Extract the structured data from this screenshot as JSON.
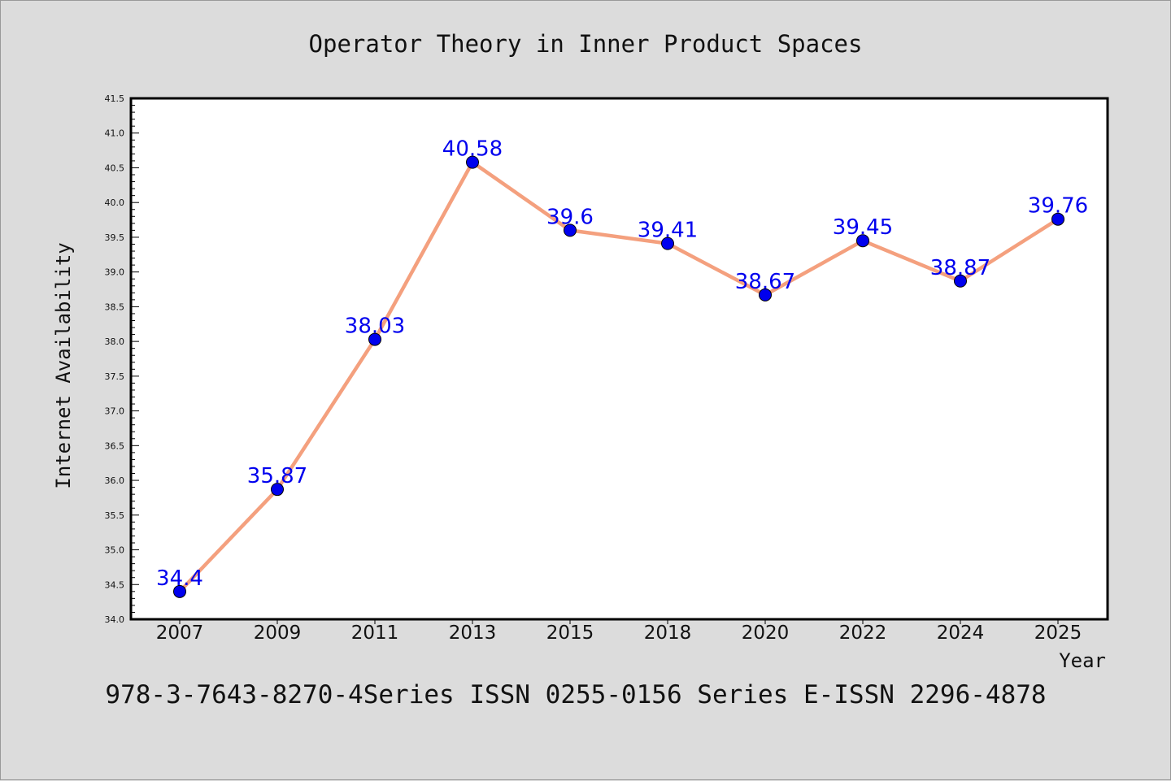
{
  "title": "Operator Theory in Inner Product Spaces",
  "footer": "978-3-7643-8270-4Series ISSN 0255-0156 Series E-ISSN 2296-4878",
  "colors": {
    "background": "#dcdcdc",
    "plot_background": "#ffffff",
    "line": "#f4a07e",
    "marker": "#0000ee",
    "data_label": "#0000ee",
    "axis": "#000000"
  },
  "chart_data": {
    "type": "line",
    "title": "Operator Theory in Inner Product Spaces",
    "xlabel": "Year",
    "ylabel": "Internet Availability",
    "categories": [
      "2007",
      "2009",
      "2011",
      "2013",
      "2015",
      "2018",
      "2020",
      "2022",
      "2024",
      "2025"
    ],
    "series": [
      {
        "values": [
          34.4,
          35.87,
          38.03,
          40.58,
          39.6,
          39.41,
          38.67,
          39.45,
          38.87,
          39.76
        ],
        "data_labels": [
          "34.4",
          "35.87",
          "38.03",
          "40.58",
          "39.6",
          "39.41",
          "38.67",
          "39.45",
          "38.87",
          "39.76"
        ]
      }
    ],
    "ylim": [
      34.0,
      41.5
    ],
    "yticks": [
      "34.0",
      "34.5",
      "35.0",
      "35.5",
      "36.0",
      "36.5",
      "37.0",
      "37.5",
      "38.0",
      "38.5",
      "39.0",
      "39.5",
      "40.0",
      "40.5",
      "41.0",
      "41.5"
    ],
    "grid": false,
    "legend": "none",
    "marker": "circle"
  }
}
